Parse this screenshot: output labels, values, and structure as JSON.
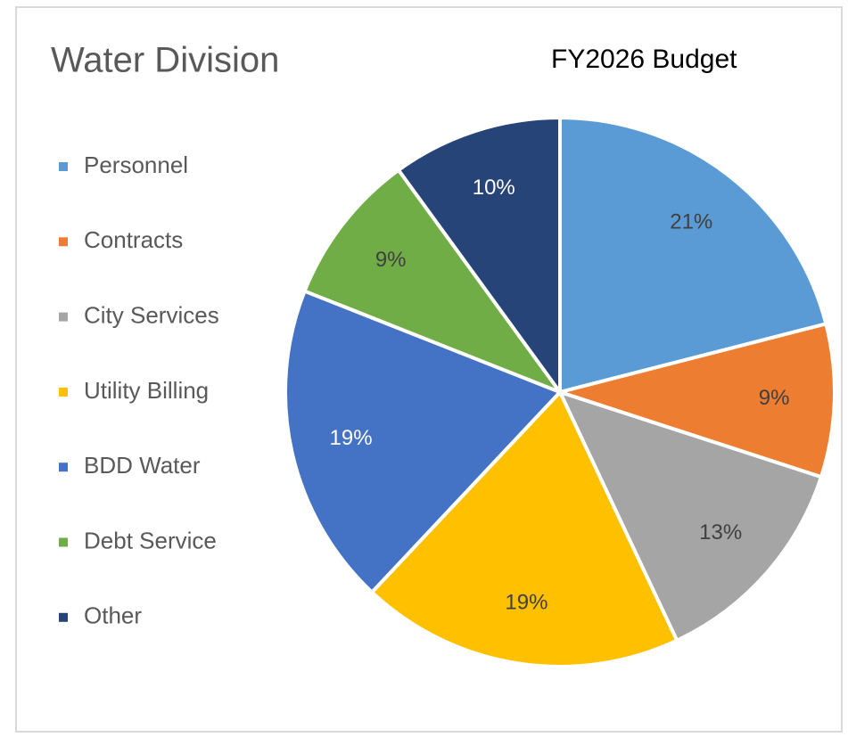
{
  "chart_data": {
    "type": "pie",
    "title": "Water Division",
    "subtitle": "FY2026 Budget",
    "categories": [
      "Personnel",
      "Contracts",
      "City Services",
      "Utility Billing",
      "BDD Water",
      "Debt Service",
      "Other"
    ],
    "values": [
      21,
      9,
      13,
      19,
      19,
      9,
      10
    ],
    "value_labels": [
      "21%",
      "9%",
      "13%",
      "19%",
      "19%",
      "9%",
      "10%"
    ],
    "colors": [
      "#5b9bd5",
      "#ed7d31",
      "#a5a5a5",
      "#ffc000",
      "#4472c4",
      "#70ad47",
      "#264478"
    ],
    "legend": "left"
  }
}
